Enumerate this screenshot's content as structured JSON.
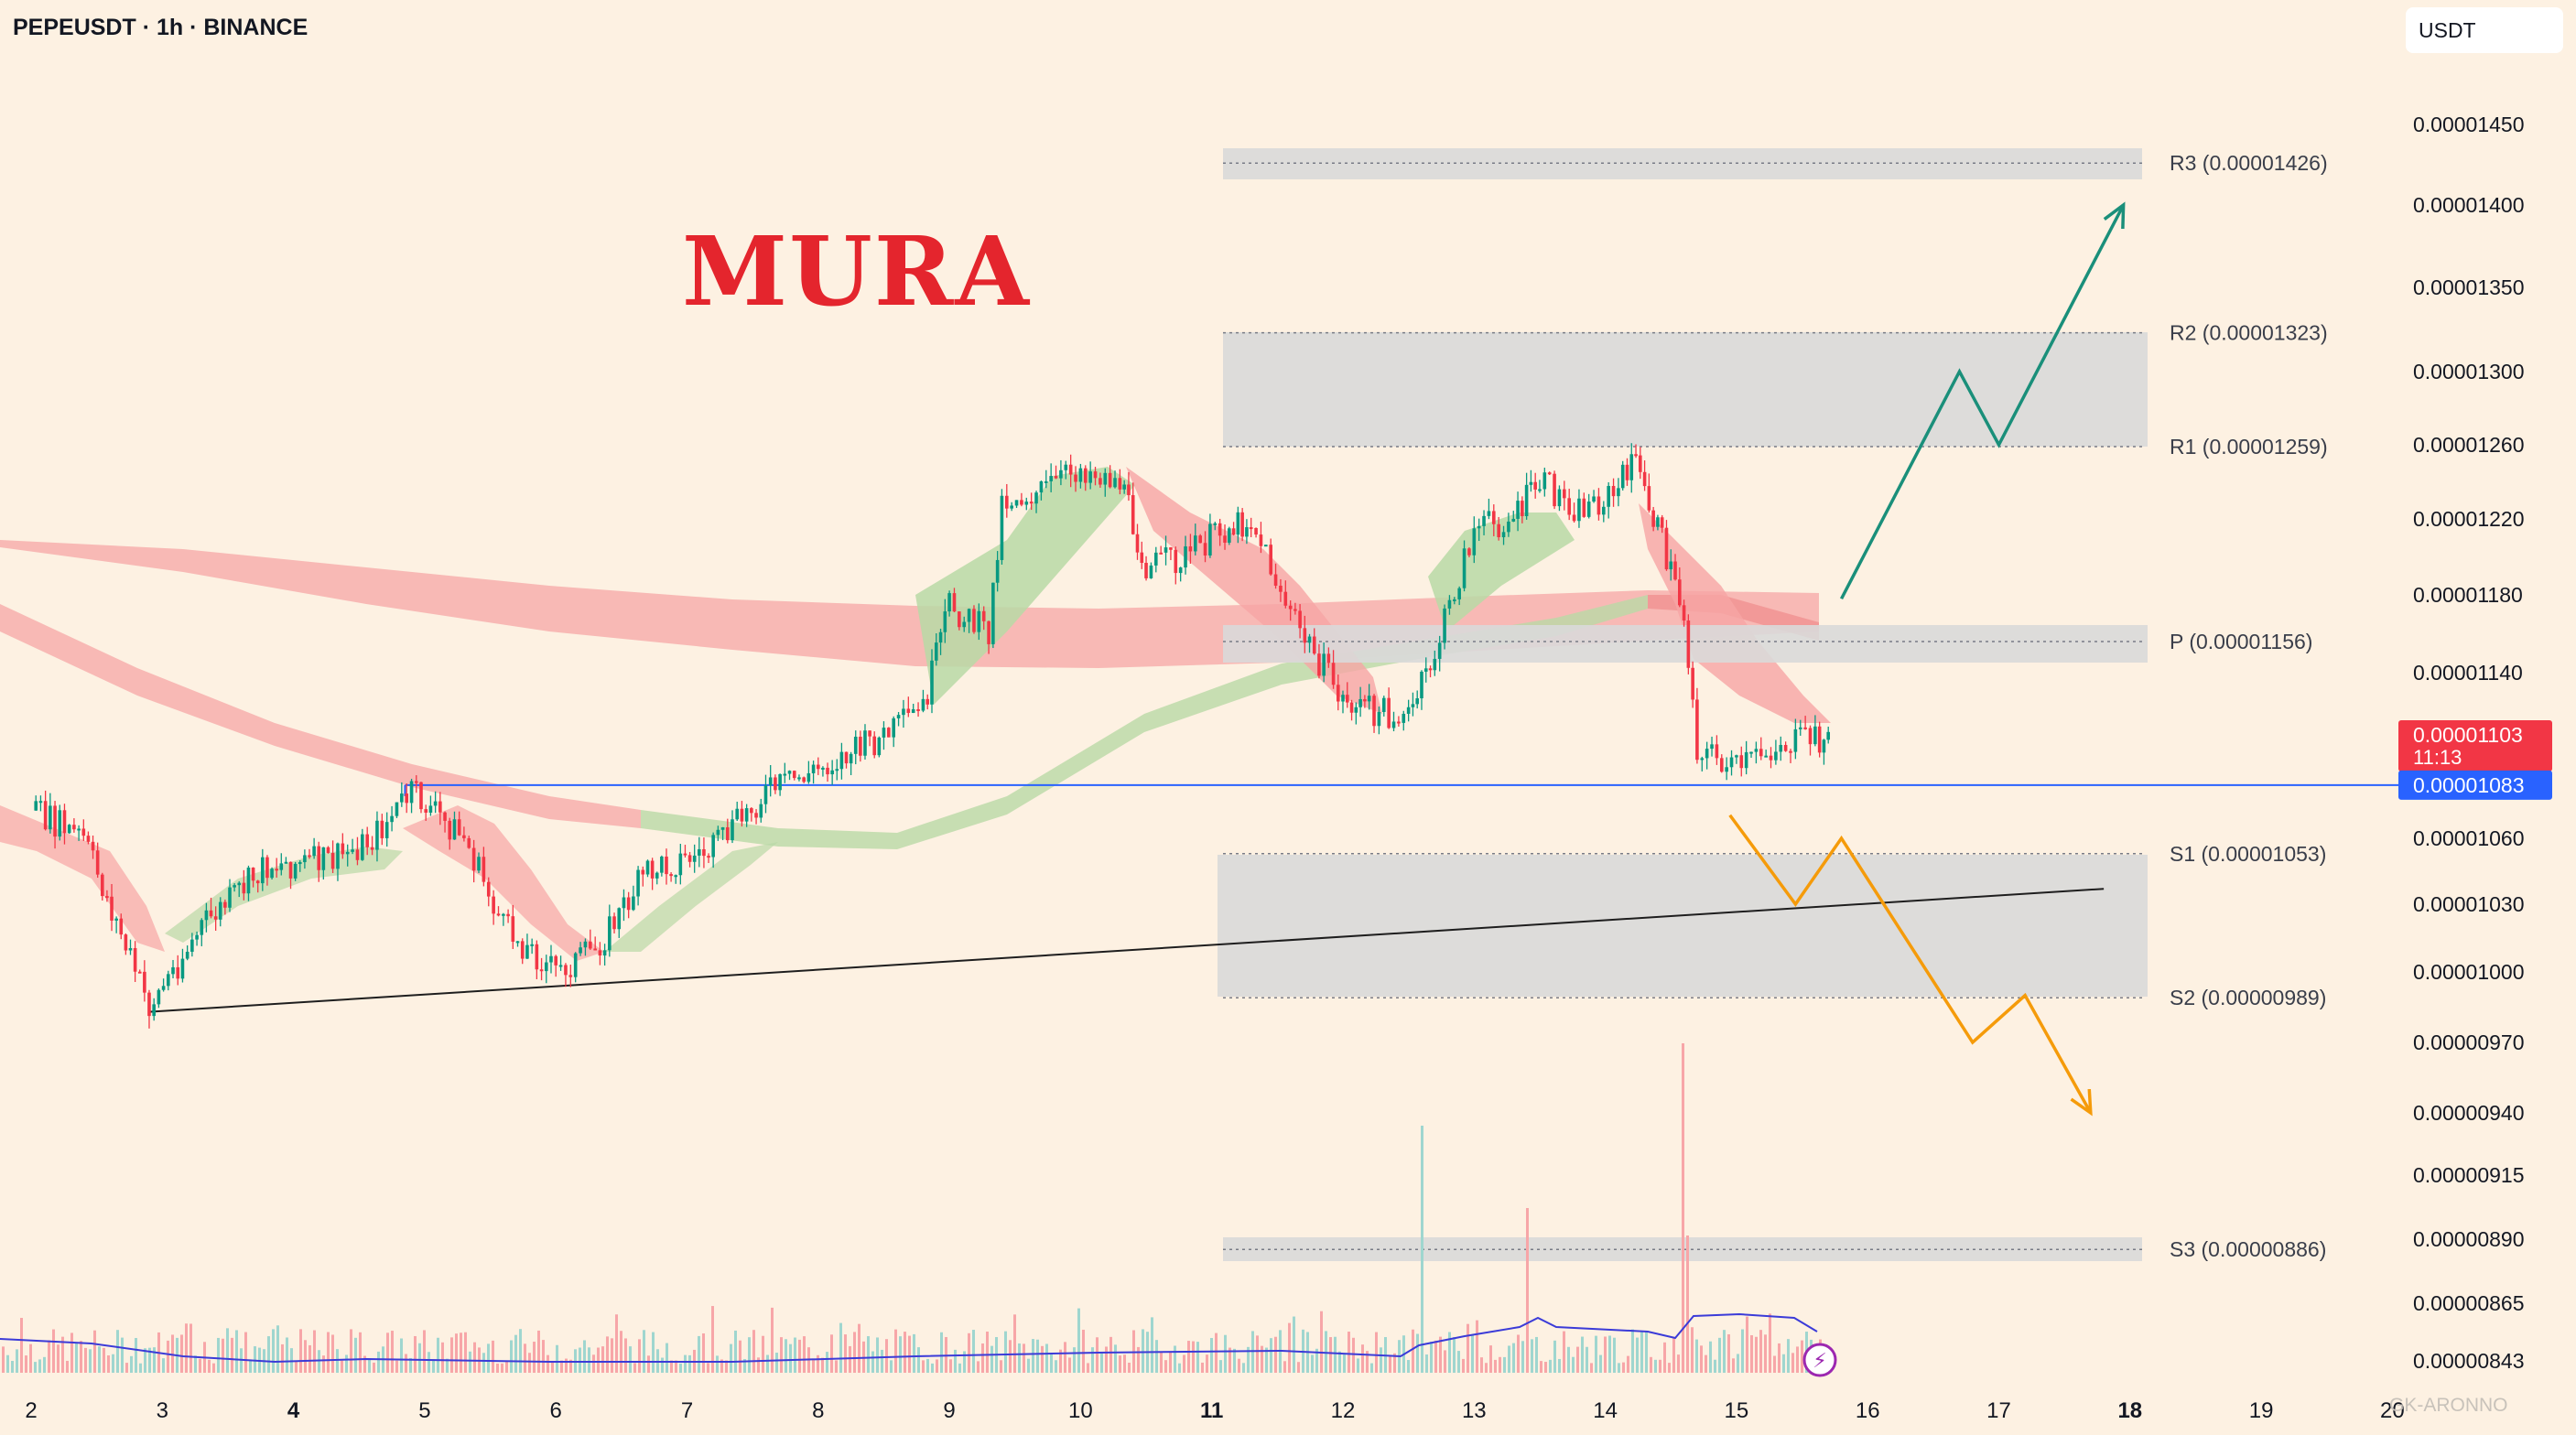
{
  "header": {
    "symbol_line": "PEPEUSDT · 1h · BINANCE",
    "unit_button": "USDT",
    "overlay_title": "MURA",
    "watermark": "GK-ARONNO"
  },
  "chart_data": {
    "type": "candlestick",
    "symbol": "PEPEUSDT",
    "interval": "1h",
    "exchange": "BINANCE",
    "y_axis_ticks": [
      "0.00001450",
      "0.00001400",
      "0.00001350",
      "0.00001300",
      "0.00001260",
      "0.00001220",
      "0.00001180",
      "0.00001140",
      "0.00001060",
      "0.00001030",
      "0.00001000",
      "0.00000970",
      "0.00000940",
      "0.00000915",
      "0.00000890",
      "0.00000865",
      "0.00000843"
    ],
    "y_axis_tick_values": [
      1.45e-05,
      1.4e-05,
      1.35e-05,
      1.3e-05,
      1.26e-05,
      1.22e-05,
      1.18e-05,
      1.14e-05,
      1.06e-05,
      1.03e-05,
      1e-05,
      9.7e-06,
      9.4e-06,
      9.15e-06,
      8.9e-06,
      8.65e-06,
      8.43e-06
    ],
    "x_axis_ticks": [
      "2",
      "3",
      "4",
      "5",
      "6",
      "7",
      "8",
      "9",
      "10",
      "11",
      "12",
      "13",
      "14",
      "15",
      "16",
      "17",
      "18",
      "19",
      "20"
    ],
    "x_axis_bold_ticks": [
      "4",
      "11",
      "18"
    ],
    "levels": [
      {
        "name": "R3",
        "label": "R3 (0.00001426)",
        "value": 1.426e-05
      },
      {
        "name": "R2",
        "label": "R2 (0.00001323)",
        "value": 1.323e-05
      },
      {
        "name": "R1",
        "label": "R1 (0.00001259)",
        "value": 1.259e-05
      },
      {
        "name": "P",
        "label": "P (0.00001156)",
        "value": 1.156e-05
      },
      {
        "name": "S1",
        "label": "S1 (0.00001053)",
        "value": 1.053e-05
      },
      {
        "name": "S2",
        "label": "S2 (0.00000989)",
        "value": 9.89e-06
      },
      {
        "name": "S3",
        "label": "S3 (0.00000886)",
        "value": 8.86e-06
      }
    ],
    "last_price": {
      "label": "0.00001103",
      "value": 1.103e-05,
      "countdown": "11:13",
      "color": "#f23645"
    },
    "marked_price": {
      "label": "0.00001083",
      "value": 1.083e-05,
      "color": "#2962ff"
    },
    "ohlc_path": [
      [
        2.0,
        1.072e-05
      ],
      [
        2.4,
        1.06e-05
      ],
      [
        2.9,
        9.85e-06
      ],
      [
        3.3,
        1.02e-05
      ],
      [
        3.8,
        1.048e-05
      ],
      [
        4.3,
        1.05e-05
      ],
      [
        4.6,
        1.06e-05
      ],
      [
        4.9,
        1.08e-05
      ],
      [
        5.3,
        1.06e-05
      ],
      [
        5.6,
        1.02e-05
      ],
      [
        6.0,
        1e-05
      ],
      [
        6.3,
        1.01e-05
      ],
      [
        6.7,
        1.045e-05
      ],
      [
        7.2,
        1.055e-05
      ],
      [
        7.6,
        1.08e-05
      ],
      [
        8.0,
        1.09e-05
      ],
      [
        8.5,
        1.105e-05
      ],
      [
        8.8,
        1.12e-05
      ],
      [
        9.0,
        1.175e-05
      ],
      [
        9.3,
        1.16e-05
      ],
      [
        9.4,
        1.23e-05
      ],
      [
        9.7,
        1.235e-05
      ],
      [
        10.0,
        1.248e-05
      ],
      [
        10.3,
        1.24e-05
      ],
      [
        10.5,
        1.195e-05
      ],
      [
        10.8,
        1.2e-05
      ],
      [
        11.1,
        1.215e-05
      ],
      [
        11.3,
        1.22e-05
      ],
      [
        11.6,
        1.17e-05
      ],
      [
        12.0,
        1.125e-05
      ],
      [
        12.2,
        1.12e-05
      ],
      [
        12.5,
        1.115e-05
      ],
      [
        12.7,
        1.15e-05
      ],
      [
        13.0,
        1.215e-05
      ],
      [
        13.3,
        1.22e-05
      ],
      [
        13.5,
        1.24e-05
      ],
      [
        13.8,
        1.225e-05
      ],
      [
        14.1,
        1.235e-05
      ],
      [
        14.2,
        1.255e-05
      ],
      [
        14.4,
        1.215e-05
      ],
      [
        14.6,
        1.17e-05
      ],
      [
        14.7,
        1.1e-05
      ],
      [
        15.0,
        1.09e-05
      ],
      [
        15.3,
        1.1e-05
      ],
      [
        15.6,
        1.105e-05
      ],
      [
        15.7,
        1.103e-05
      ]
    ],
    "projections": [
      {
        "name": "bullish path",
        "color": "#1a8f7a",
        "points": [
          [
            15.8,
            1.178e-05
          ],
          [
            16.7,
            1.3e-05
          ],
          [
            17.0,
            1.26e-05
          ],
          [
            17.95,
            1.4e-05
          ]
        ]
      },
      {
        "name": "bearish path",
        "color": "#f59b0a",
        "points": [
          [
            14.95,
            1.07e-05
          ],
          [
            15.45,
            1.03e-05
          ],
          [
            15.8,
            1.06e-05
          ],
          [
            16.8,
            9.7e-06
          ],
          [
            17.2,
            9.9e-06
          ],
          [
            17.7,
            9.4e-06
          ]
        ]
      }
    ],
    "trendlines": [
      {
        "name": "rising support",
        "points": [
          [
            2.9,
            9.83e-06
          ],
          [
            17.8,
            1.037e-05
          ]
        ]
      },
      {
        "name": "horizontal line",
        "points": [
          [
            4.85,
            1.083e-05
          ],
          [
            20.5,
            1.083e-05
          ]
        ]
      }
    ]
  }
}
